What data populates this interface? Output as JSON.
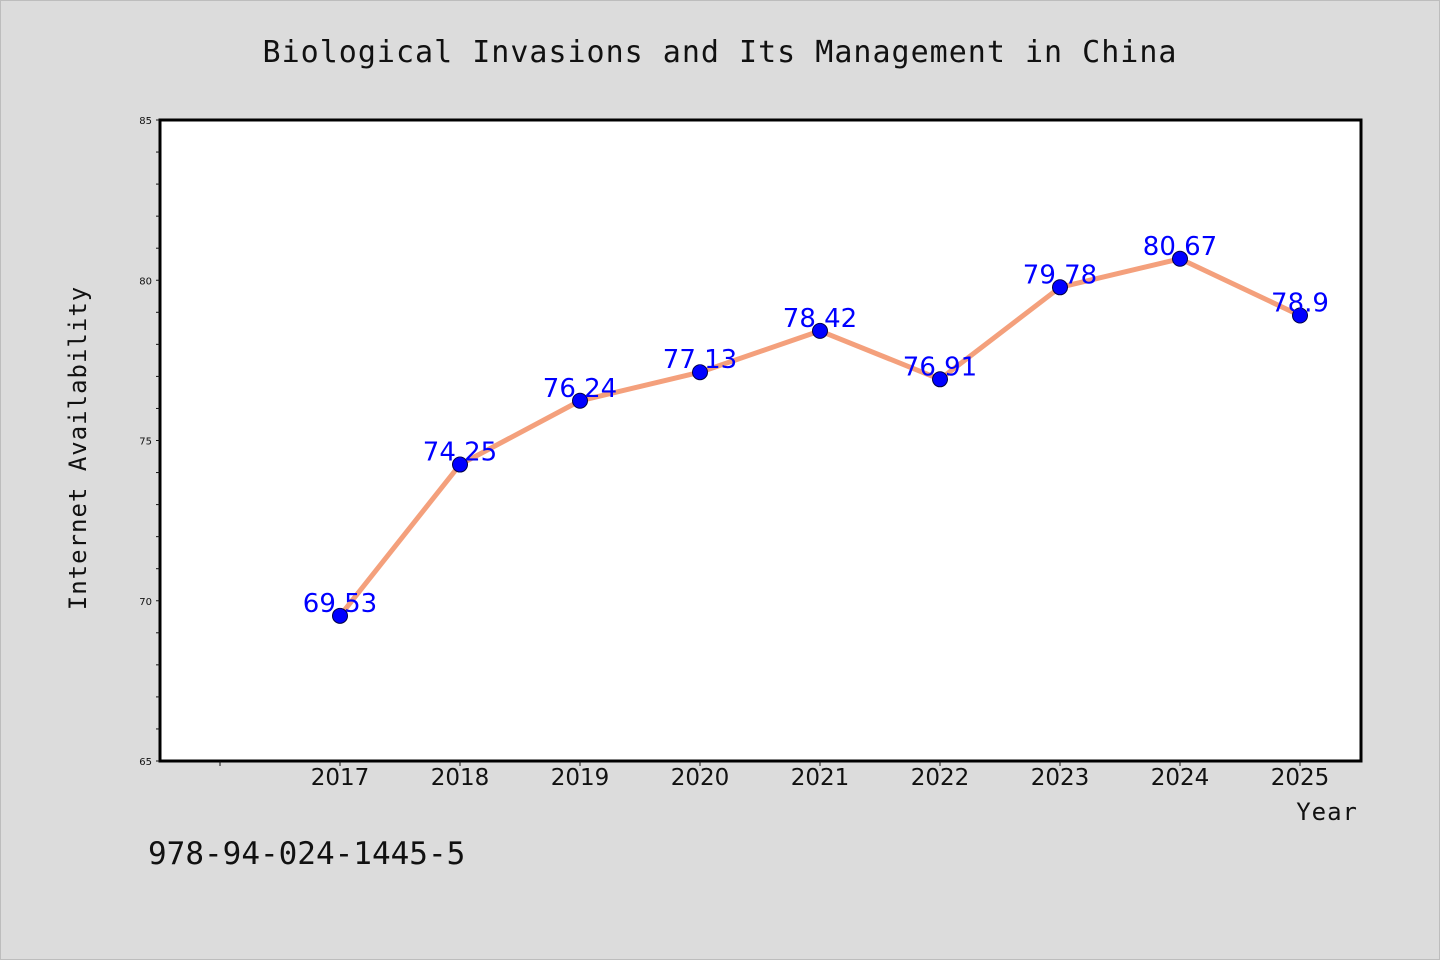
{
  "chart_data": {
    "type": "line",
    "title": "Biological Invasions and Its Management in China",
    "xlabel": "Year",
    "ylabel": "Internet Availability",
    "categories": [
      "2017",
      "2018",
      "2019",
      "2020",
      "2021",
      "2022",
      "2023",
      "2024",
      "2025"
    ],
    "series": [
      {
        "values": [
          69.53,
          74.25,
          76.24,
          77.13,
          78.42,
          76.91,
          79.78,
          80.67,
          78.9
        ],
        "labels": [
          "69.53",
          "74.25",
          "76.24",
          "77.13",
          "78.42",
          "76.91",
          "79.78",
          "80.67",
          "78.9"
        ]
      }
    ],
    "ylim": [
      65,
      85
    ],
    "yticks": [
      "65",
      "70",
      "75",
      "80",
      "85"
    ],
    "grid": false,
    "legend": "none",
    "colors": {
      "line": "#f4a07c",
      "marker": "#0000ff",
      "data_label": "#0000ff",
      "background": "#dcdcdc",
      "plot_area": "#ffffff"
    }
  },
  "footer": {
    "code": "978-94-024-1445-5"
  }
}
